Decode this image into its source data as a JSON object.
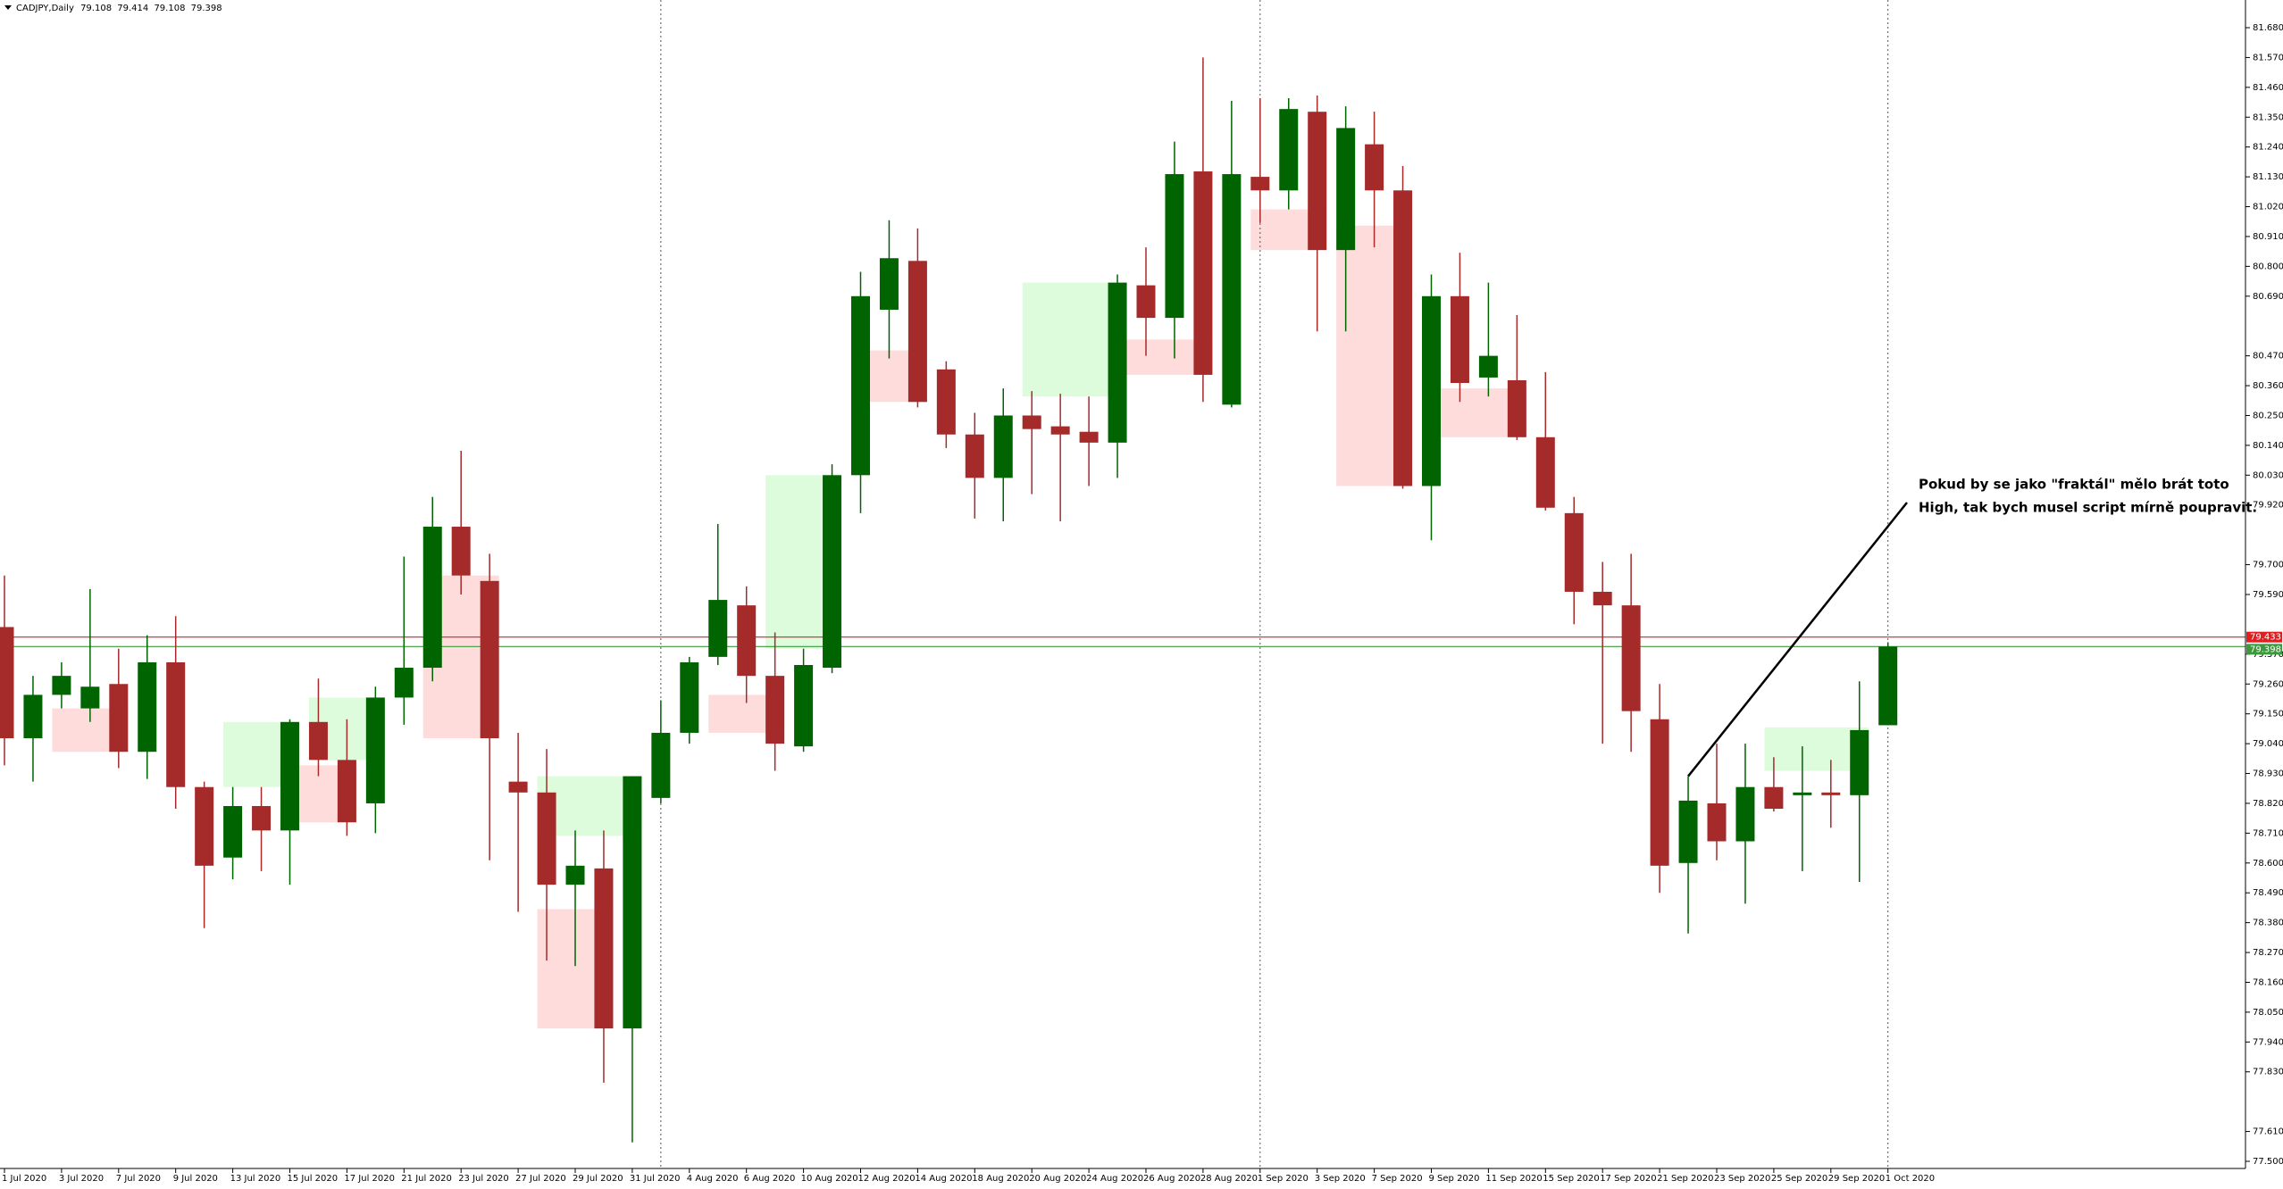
{
  "chart_data": {
    "type": "candlestick",
    "title": "CADJPY,Daily",
    "annotation": [
      "Pokud by se jako \"fraktál\" mělo brát toto",
      "High, tak bych musel script mírně poupravit."
    ],
    "up_color": "#006400",
    "down_color": "#a52a2a",
    "categories": [
      "1 Jul 2020",
      null,
      "3 Jul 2020",
      null,
      "7 Jul 2020",
      null,
      "9 Jul 2020",
      null,
      "13 Jul 2020",
      null,
      "15 Jul 2020",
      null,
      "17 Jul 2020",
      null,
      "21 Jul 2020",
      null,
      "23 Jul 2020",
      null,
      "27 Jul 2020",
      null,
      "29 Jul 2020",
      null,
      "31 Jul 2020",
      null,
      "4 Aug 2020",
      null,
      "6 Aug 2020",
      null,
      "10 Aug 2020",
      null,
      "12 Aug 2020",
      null,
      "14 Aug 2020",
      null,
      "18 Aug 2020",
      null,
      "20 Aug 2020",
      null,
      "24 Aug 2020",
      null,
      "26 Aug 2020",
      null,
      "28 Aug 2020",
      null,
      "1 Sep 2020",
      null,
      "3 Sep 2020",
      null,
      "7 Sep 2020",
      null,
      "9 Sep 2020",
      null,
      "11 Sep 2020",
      null,
      "15 Sep 2020",
      null,
      "17 Sep 2020",
      null,
      "21 Sep 2020",
      null,
      "23 Sep 2020",
      null,
      "25 Sep 2020",
      null,
      "29 Sep 2020",
      null,
      "1 Oct 2020"
    ],
    "open": [
      79.47,
      79.06,
      79.22,
      79.17,
      79.26,
      79.01,
      79.34,
      78.88,
      78.62,
      78.81,
      78.72,
      79.12,
      78.98,
      78.82,
      79.21,
      79.32,
      79.84,
      79.64,
      78.9,
      78.86,
      78.52,
      78.58,
      77.99,
      78.84,
      79.08,
      79.36,
      79.55,
      79.29,
      79.03,
      79.32,
      80.03,
      80.64,
      80.82,
      80.42,
      80.18,
      80.02,
      80.25,
      80.21,
      80.19,
      80.15,
      80.73,
      80.61,
      81.15,
      80.29,
      81.13,
      81.08,
      81.37,
      80.86,
      81.25,
      81.08,
      79.99,
      80.69,
      80.39,
      80.38,
      80.17,
      79.89,
      79.6,
      79.55,
      79.13,
      78.6,
      78.82,
      78.68,
      78.88,
      78.85,
      78.86,
      78.85,
      79.108
    ],
    "high": [
      79.66,
      79.29,
      79.34,
      79.61,
      79.39,
      79.44,
      79.51,
      78.9,
      78.88,
      78.88,
      79.13,
      79.28,
      79.13,
      79.25,
      79.73,
      79.95,
      80.12,
      79.74,
      79.08,
      79.02,
      78.72,
      78.72,
      78.92,
      79.2,
      79.36,
      79.85,
      79.62,
      79.45,
      79.39,
      80.07,
      80.78,
      80.97,
      80.94,
      80.45,
      80.26,
      80.35,
      80.34,
      80.33,
      80.32,
      80.77,
      80.87,
      81.26,
      81.57,
      81.41,
      81.42,
      81.42,
      81.43,
      81.39,
      81.37,
      81.17,
      80.77,
      80.85,
      80.74,
      80.62,
      80.41,
      79.95,
      79.71,
      79.74,
      79.26,
      78.92,
      79.04,
      79.04,
      78.99,
      79.03,
      78.98,
      79.27,
      79.414
    ],
    "low": [
      78.96,
      78.9,
      79.17,
      79.12,
      78.95,
      78.91,
      78.8,
      78.36,
      78.54,
      78.57,
      78.52,
      78.92,
      78.7,
      78.71,
      79.11,
      79.27,
      79.59,
      78.61,
      78.42,
      78.24,
      78.22,
      77.79,
      77.57,
      78.82,
      79.04,
      79.33,
      79.19,
      78.94,
      79.01,
      79.3,
      79.89,
      80.46,
      80.28,
      80.13,
      79.87,
      79.86,
      79.96,
      79.86,
      79.99,
      80.02,
      80.47,
      80.46,
      80.3,
      80.28,
      80.96,
      81.01,
      80.56,
      80.56,
      80.87,
      79.98,
      79.79,
      80.3,
      80.32,
      80.16,
      79.9,
      79.48,
      79.04,
      79.01,
      78.49,
      78.34,
      78.61,
      78.45,
      78.79,
      78.57,
      78.73,
      78.53,
      79.108
    ],
    "close": [
      79.06,
      79.22,
      79.29,
      79.25,
      79.01,
      79.34,
      78.88,
      78.59,
      78.81,
      78.72,
      79.12,
      78.98,
      78.75,
      79.21,
      79.32,
      79.84,
      79.66,
      79.06,
      78.86,
      78.52,
      78.59,
      77.99,
      78.92,
      79.08,
      79.34,
      79.57,
      79.29,
      79.04,
      79.33,
      80.03,
      80.69,
      80.83,
      80.3,
      80.18,
      80.02,
      80.25,
      80.2,
      80.18,
      80.15,
      80.74,
      80.61,
      81.14,
      80.4,
      81.14,
      81.08,
      81.38,
      80.86,
      81.31,
      81.08,
      79.99,
      80.69,
      80.37,
      80.47,
      80.17,
      79.91,
      79.6,
      79.55,
      79.16,
      78.59,
      78.83,
      78.68,
      78.88,
      78.8,
      78.86,
      78.85,
      79.09,
      79.398
    ],
    "zones": [
      {
        "from": 2,
        "to": 4,
        "top": 79.17,
        "bottom": 79.01,
        "color": "#ffdcdc"
      },
      {
        "from": 8,
        "to": 10,
        "top": 79.12,
        "bottom": 78.88,
        "color": "#dcfcdc"
      },
      {
        "from": 10,
        "to": 12,
        "top": 78.96,
        "bottom": 78.75,
        "color": "#ffdcdc"
      },
      {
        "from": 11,
        "to": 13,
        "top": 79.21,
        "bottom": 78.98,
        "color": "#dcfcdc"
      },
      {
        "from": 15,
        "to": 17,
        "top": 79.66,
        "bottom": 79.06,
        "color": "#ffdcdc"
      },
      {
        "from": 19,
        "to": 21,
        "top": 78.43,
        "bottom": 77.99,
        "color": "#ffdcdc"
      },
      {
        "from": 19,
        "to": 22,
        "top": 78.92,
        "bottom": 78.7,
        "color": "#dcfcdc"
      },
      {
        "from": 25,
        "to": 27,
        "top": 79.22,
        "bottom": 79.08,
        "color": "#ffdcdc"
      },
      {
        "from": 27,
        "to": 29,
        "top": 80.03,
        "bottom": 79.39,
        "color": "#dcfcdc"
      },
      {
        "from": 30,
        "to": 32,
        "top": 80.49,
        "bottom": 80.3,
        "color": "#ffdcdc"
      },
      {
        "from": 36,
        "to": 39,
        "top": 80.74,
        "bottom": 80.32,
        "color": "#dcfcdc"
      },
      {
        "from": 39,
        "to": 42,
        "top": 80.53,
        "bottom": 80.4,
        "color": "#ffdcdc"
      },
      {
        "from": 44,
        "to": 46,
        "top": 81.01,
        "bottom": 80.86,
        "color": "#ffdcdc"
      },
      {
        "from": 47,
        "to": 49,
        "top": 80.95,
        "bottom": 79.99,
        "color": "#ffdcdc"
      },
      {
        "from": 50,
        "to": 53,
        "top": 80.35,
        "bottom": 80.17,
        "color": "#ffdcdc"
      },
      {
        "from": 62,
        "to": 65,
        "top": 79.1,
        "bottom": 78.94,
        "color": "#dcfcdc"
      }
    ],
    "price_lines": [
      {
        "value": 79.433,
        "color": "#e02020"
      },
      {
        "value": 79.398,
        "color": "#3c9a3c"
      }
    ],
    "ylim": [
      77.5,
      81.68
    ],
    "yticks": [
      {
        "value": 81.68,
        "label": "81.680"
      },
      {
        "value": 81.57,
        "label": "81.570"
      },
      {
        "value": 81.46,
        "label": "81.460"
      },
      {
        "value": 81.35,
        "label": "81.350"
      },
      {
        "value": 81.24,
        "label": "81.240"
      },
      {
        "value": 81.13,
        "label": "81.130"
      },
      {
        "value": 81.02,
        "label": "81.020"
      },
      {
        "value": 80.91,
        "label": "80.910"
      },
      {
        "value": 80.8,
        "label": "80.800"
      },
      {
        "value": 80.69,
        "label": "80.690"
      },
      {
        "value": 80.47,
        "label": "80.470"
      },
      {
        "value": 80.36,
        "label": "80.360"
      },
      {
        "value": 80.25,
        "label": "80.250"
      },
      {
        "value": 80.14,
        "label": "80.140"
      },
      {
        "value": 80.03,
        "label": "80.030"
      },
      {
        "value": 79.92,
        "label": "79.920"
      },
      {
        "value": 79.7,
        "label": "79.700"
      },
      {
        "value": 79.59,
        "label": "79.590"
      },
      {
        "value": 79.37,
        "label": "79.370"
      },
      {
        "value": 79.26,
        "label": "79.260"
      },
      {
        "value": 79.15,
        "label": "79.150"
      },
      {
        "value": 79.04,
        "label": "79.040"
      },
      {
        "value": 78.93,
        "label": "78.930"
      },
      {
        "value": 78.82,
        "label": "78.820"
      },
      {
        "value": 78.71,
        "label": "78.710"
      },
      {
        "value": 78.6,
        "label": "78.600"
      },
      {
        "value": 78.49,
        "label": "78.490"
      },
      {
        "value": 78.38,
        "label": "78.380"
      },
      {
        "value": 78.27,
        "label": "78.270"
      },
      {
        "value": 78.16,
        "label": "78.160"
      },
      {
        "value": 78.05,
        "label": "78.050"
      },
      {
        "value": 77.94,
        "label": "77.940"
      },
      {
        "value": 77.83,
        "label": "77.830"
      },
      {
        "value": 77.61,
        "label": "77.610"
      },
      {
        "value": 77.5,
        "label": "77.500"
      }
    ],
    "grid": false
  }
}
